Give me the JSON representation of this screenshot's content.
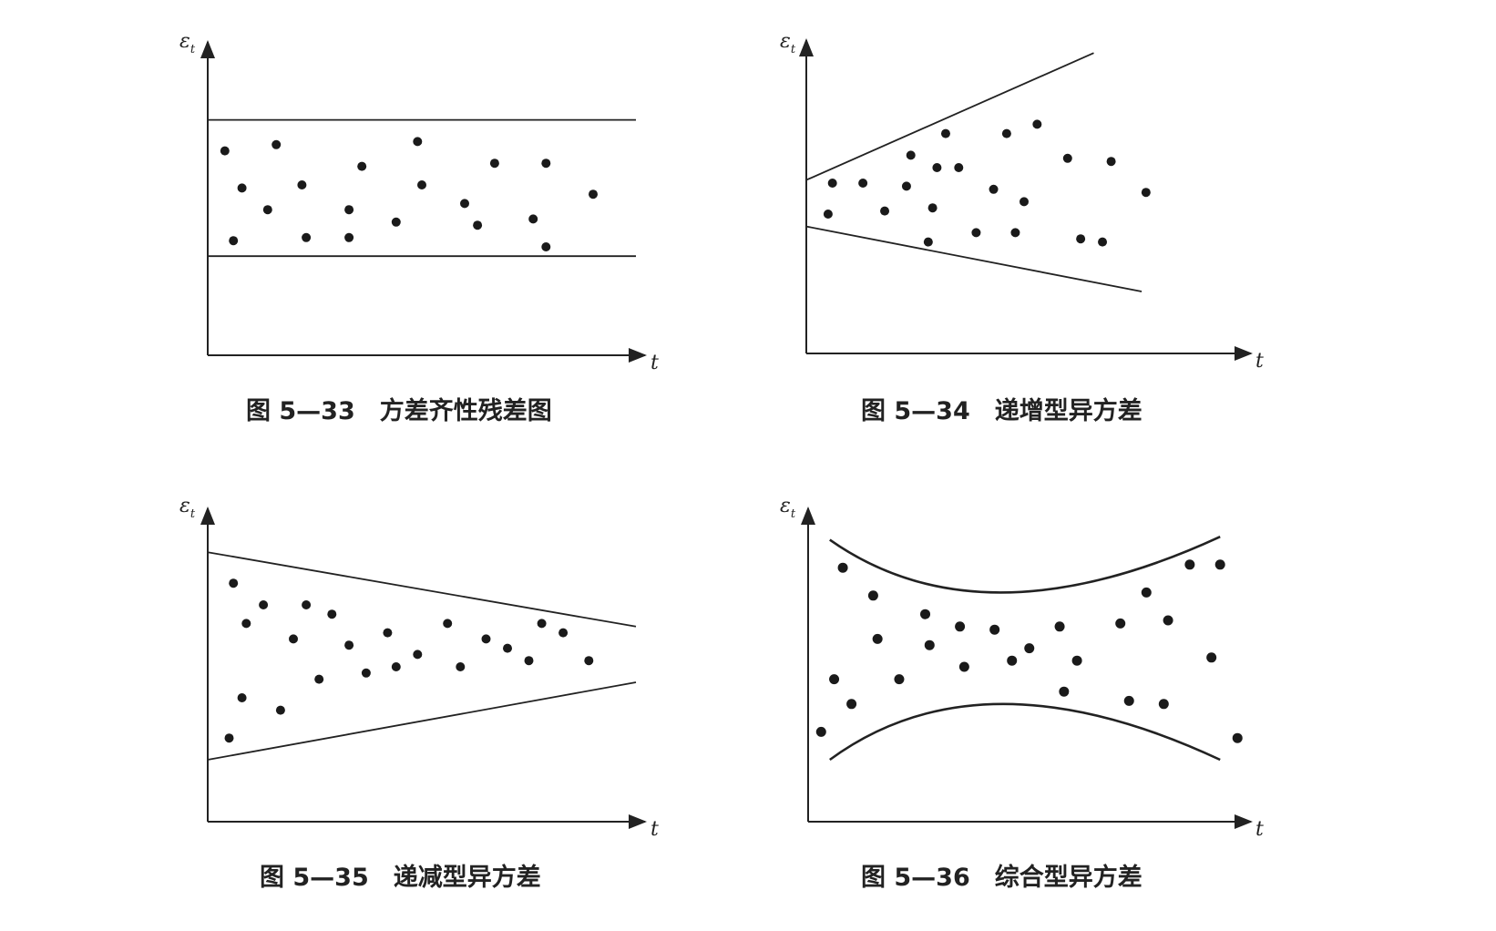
{
  "chart_data": [
    {
      "type": "scatter",
      "caption": "图 5—33　方差齐性残差图",
      "ylabel": "ε",
      "ylabel_sub": "t",
      "xlabel": "t",
      "xlim": [
        0,
        100
      ],
      "ylim": [
        0,
        100
      ],
      "bounds": {
        "upper": [
          [
            0,
            76
          ],
          [
            100,
            76
          ]
        ],
        "lower": [
          [
            0,
            32
          ],
          [
            100,
            32
          ]
        ]
      },
      "points": [
        [
          4,
          66
        ],
        [
          8,
          54
        ],
        [
          6,
          37
        ],
        [
          14,
          47
        ],
        [
          16,
          68
        ],
        [
          22,
          55
        ],
        [
          23,
          38
        ],
        [
          33,
          47
        ],
        [
          33,
          38
        ],
        [
          36,
          61
        ],
        [
          44,
          43
        ],
        [
          49,
          69
        ],
        [
          50,
          55
        ],
        [
          60,
          49
        ],
        [
          63,
          42
        ],
        [
          67,
          62
        ],
        [
          76,
          44
        ],
        [
          79,
          35
        ],
        [
          79,
          62
        ],
        [
          90,
          52
        ]
      ]
    },
    {
      "type": "scatter",
      "caption": "图 5—34　递增型异方差",
      "ylabel": "ε",
      "ylabel_sub": "t",
      "xlabel": "t",
      "xlim": [
        0,
        100
      ],
      "ylim": [
        0,
        100
      ],
      "bounds": {
        "upper": [
          [
            0,
            56
          ],
          [
            66,
            97
          ]
        ],
        "lower": [
          [
            0,
            41
          ],
          [
            77,
            20
          ]
        ]
      },
      "points": [
        [
          6,
          55
        ],
        [
          5,
          45
        ],
        [
          13,
          55
        ],
        [
          18,
          46
        ],
        [
          23,
          54
        ],
        [
          24,
          64
        ],
        [
          30,
          60
        ],
        [
          29,
          47
        ],
        [
          28,
          36
        ],
        [
          32,
          71
        ],
        [
          35,
          60
        ],
        [
          39,
          39
        ],
        [
          43,
          53
        ],
        [
          46,
          71
        ],
        [
          48,
          39
        ],
        [
          50,
          49
        ],
        [
          53,
          74
        ],
        [
          60,
          63
        ],
        [
          63,
          37
        ],
        [
          70,
          62
        ],
        [
          68,
          36
        ],
        [
          78,
          52
        ]
      ]
    },
    {
      "type": "scatter",
      "caption": "图 5—35　递减型异方差",
      "ylabel": "ε",
      "ylabel_sub": "t",
      "xlabel": "t",
      "xlim": [
        0,
        100
      ],
      "ylim": [
        0,
        100
      ],
      "bounds": {
        "upper": [
          [
            0,
            87
          ],
          [
            100,
            63
          ]
        ],
        "lower": [
          [
            0,
            20
          ],
          [
            100,
            45
          ]
        ]
      },
      "points": [
        [
          6,
          77
        ],
        [
          9,
          64
        ],
        [
          8,
          40
        ],
        [
          5,
          27
        ],
        [
          13,
          70
        ],
        [
          17,
          36
        ],
        [
          20,
          59
        ],
        [
          23,
          70
        ],
        [
          26,
          46
        ],
        [
          29,
          67
        ],
        [
          33,
          57
        ],
        [
          37,
          48
        ],
        [
          42,
          61
        ],
        [
          44,
          50
        ],
        [
          49,
          54
        ],
        [
          56,
          64
        ],
        [
          59,
          50
        ],
        [
          65,
          59
        ],
        [
          70,
          56
        ],
        [
          75,
          52
        ],
        [
          78,
          64
        ],
        [
          83,
          61
        ],
        [
          89,
          52
        ]
      ]
    },
    {
      "type": "scatter",
      "caption": "图 5—36　综合型异方差",
      "ylabel": "ε",
      "ylabel_sub": "t",
      "xlabel": "t",
      "xlim": [
        0,
        100
      ],
      "ylim": [
        0,
        100
      ],
      "bounds": {
        "upper": [
          [
            5,
            91
          ],
          [
            45,
            74
          ],
          [
            95,
            92
          ]
        ],
        "lower": [
          [
            5,
            20
          ],
          [
            45,
            38
          ],
          [
            95,
            20
          ]
        ]
      },
      "points": [
        [
          8,
          82
        ],
        [
          6,
          46
        ],
        [
          3,
          29
        ],
        [
          10,
          38
        ],
        [
          15,
          73
        ],
        [
          16,
          59
        ],
        [
          21,
          46
        ],
        [
          27,
          67
        ],
        [
          28,
          57
        ],
        [
          35,
          63
        ],
        [
          36,
          50
        ],
        [
          43,
          62
        ],
        [
          47,
          52
        ],
        [
          51,
          56
        ],
        [
          58,
          63
        ],
        [
          59,
          42
        ],
        [
          62,
          52
        ],
        [
          72,
          64
        ],
        [
          74,
          39
        ],
        [
          78,
          74
        ],
        [
          82,
          38
        ],
        [
          83,
          65
        ],
        [
          88,
          83
        ],
        [
          93,
          53
        ],
        [
          95,
          83
        ],
        [
          99,
          27
        ]
      ]
    }
  ]
}
